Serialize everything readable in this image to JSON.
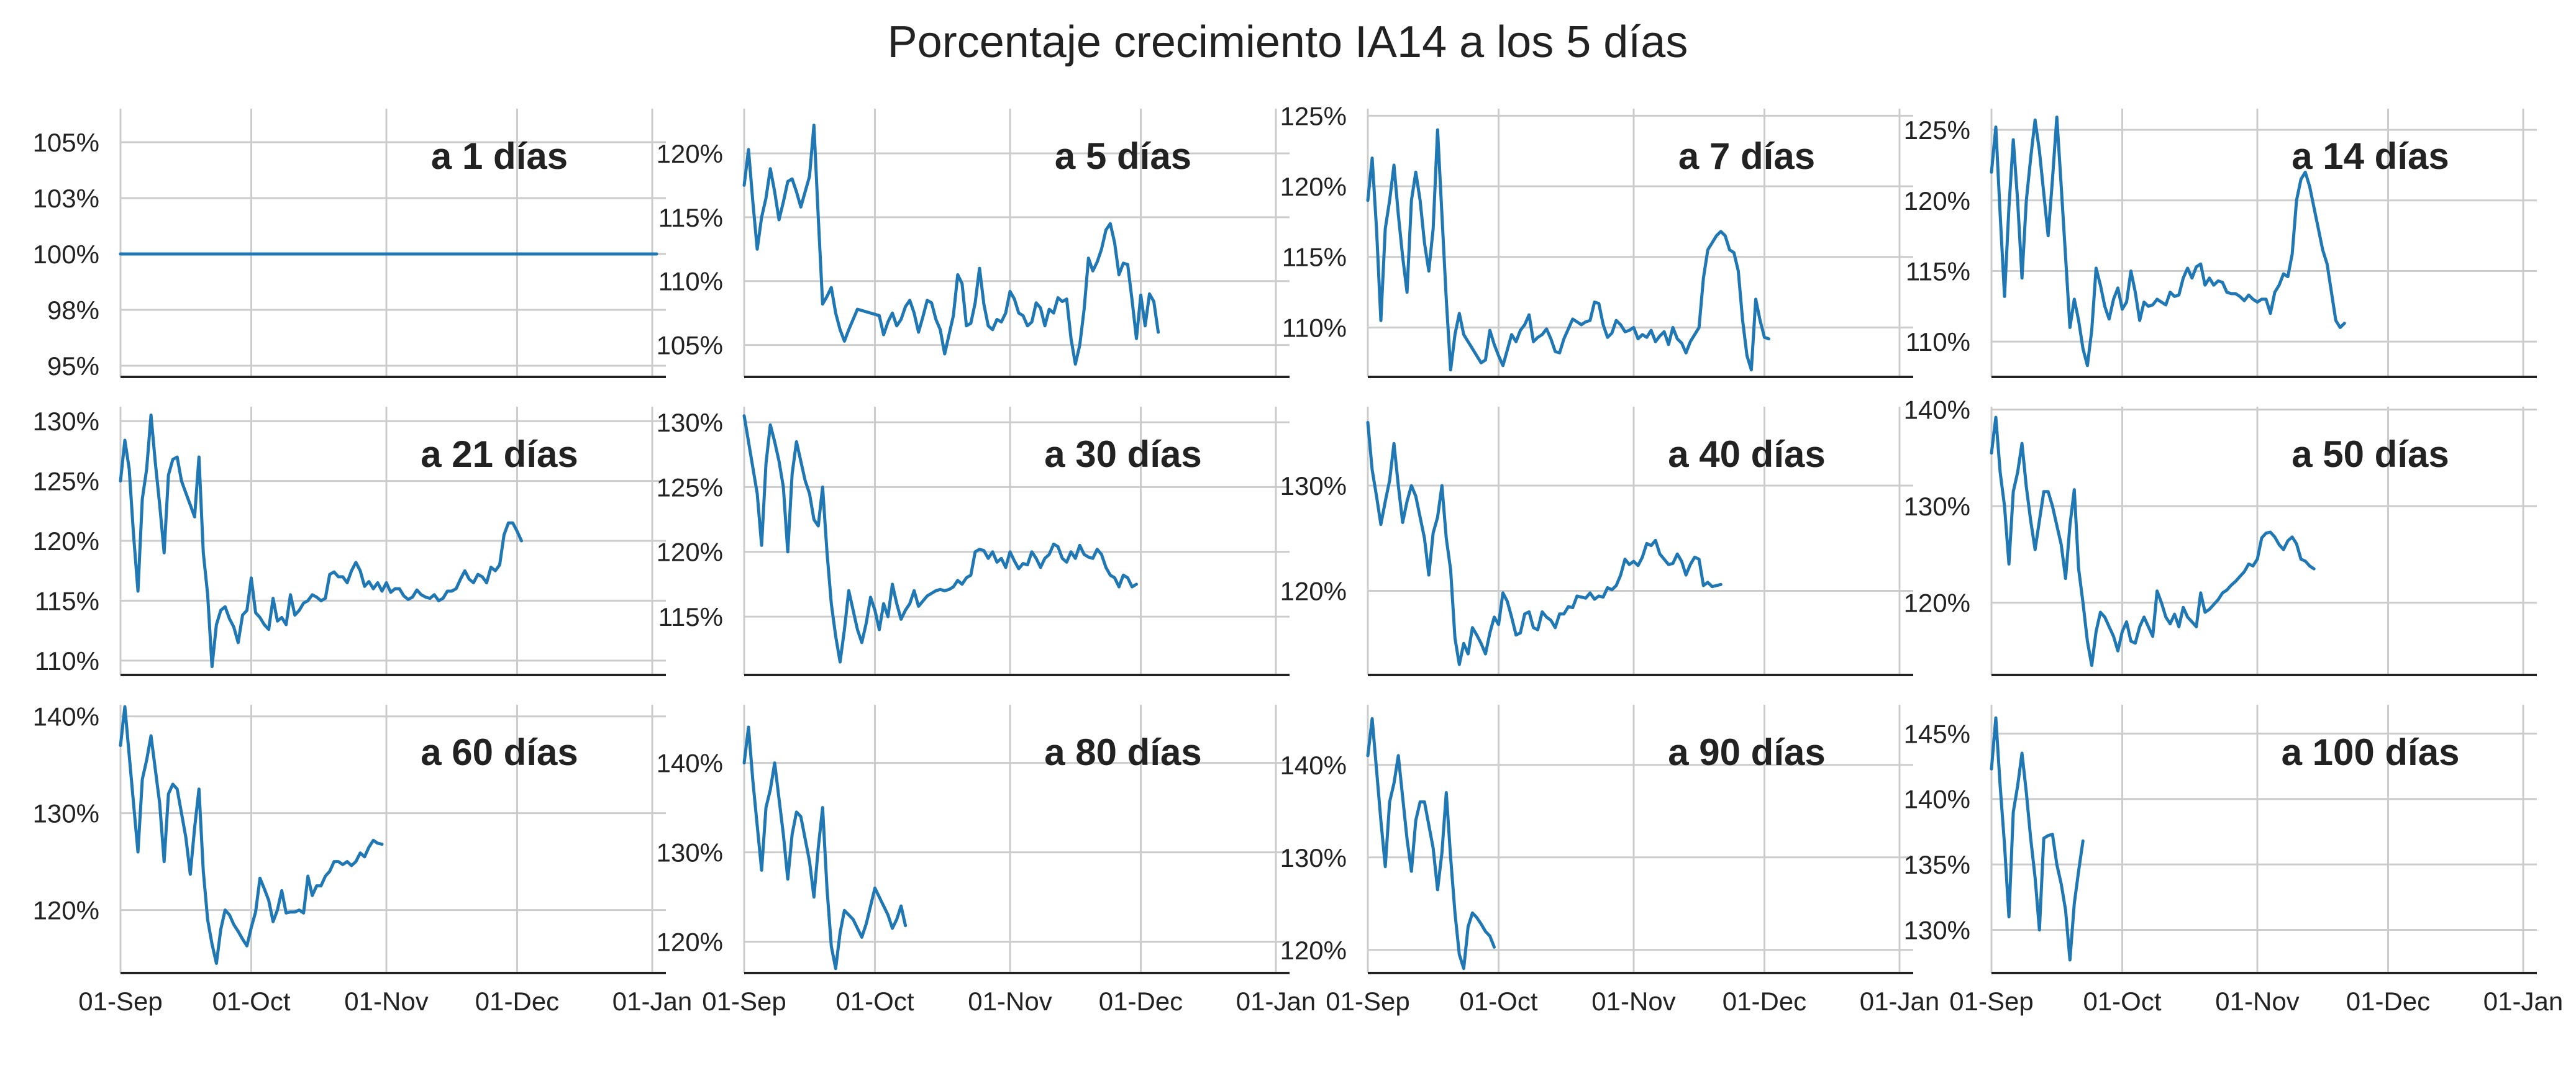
{
  "title": "Porcentaje crecimiento IA14 a los 5 días",
  "colors": {
    "line": "#1f77b4",
    "grid": "#cccccc",
    "axis": "#222222"
  },
  "x_ticks": [
    "01-Sep",
    "01-Oct",
    "01-Nov",
    "01-Dec",
    "01-Jan"
  ],
  "chart_data": [
    {
      "type": "line",
      "title": "a 1 días",
      "x_start": "2020-09-01",
      "ylim": [
        94.5,
        106.5
      ],
      "ytick_values": [
        95,
        97.5,
        100,
        102.5,
        105
      ],
      "ytick_labels": [
        "95%",
        "98%",
        "100%",
        "103%",
        "105%"
      ],
      "values": [
        100,
        100,
        100,
        100,
        100,
        100,
        100,
        100,
        100,
        100,
        100,
        100,
        100,
        100,
        100,
        100,
        100,
        100,
        100,
        100,
        100,
        100,
        100,
        100,
        100,
        100,
        100,
        100,
        100,
        100,
        100,
        100,
        100,
        100,
        100,
        100,
        100,
        100,
        100,
        100,
        100,
        100,
        100,
        100,
        100,
        100,
        100,
        100,
        100,
        100,
        100,
        100,
        100,
        100,
        100,
        100,
        100,
        100,
        100,
        100,
        100,
        100,
        100,
        100,
        100,
        100,
        100,
        100,
        100,
        100,
        100,
        100,
        100,
        100,
        100,
        100,
        100,
        100,
        100,
        100,
        100,
        100,
        100,
        100,
        100,
        100,
        100,
        100,
        100,
        100,
        100,
        100,
        100,
        100,
        100,
        100,
        100,
        100,
        100,
        100,
        100,
        100,
        100,
        100,
        100,
        100,
        100,
        100,
        100,
        100,
        100,
        100,
        100,
        100,
        100,
        100,
        100,
        100,
        100,
        100,
        100,
        100,
        100,
        100
      ]
    },
    {
      "type": "line",
      "title": "a 5 días",
      "x_start": "2020-09-01",
      "ylim": [
        102.5,
        123.5
      ],
      "ytick_values": [
        105,
        110,
        115,
        120
      ],
      "ytick_labels": [
        "105%",
        "110%",
        "115%",
        "120%"
      ],
      "values": [
        117.5,
        120.3,
        116.2,
        112.5,
        115.0,
        116.5,
        118.8,
        117.0,
        114.8,
        116.2,
        117.8,
        118.0,
        117.0,
        115.8,
        117.0,
        118.2,
        122.2,
        115.0,
        108.2,
        108.8,
        109.5,
        107.5,
        106.2,
        105.3,
        106.2,
        107.0,
        107.8,
        107.7,
        107.6,
        107.5,
        107.4,
        107.3,
        105.8,
        106.8,
        107.5,
        106.5,
        107.0,
        108.0,
        108.5,
        107.5,
        106.0,
        107.2,
        108.5,
        108.3,
        107.0,
        106.2,
        104.3,
        105.8,
        107.3,
        110.5,
        109.8,
        106.5,
        106.7,
        108.3,
        111.0,
        108.2,
        106.5,
        106.2,
        107.0,
        106.8,
        107.5,
        109.2,
        108.6,
        107.5,
        107.3,
        106.5,
        106.8,
        108.3,
        107.9,
        106.5,
        107.8,
        107.5,
        108.7,
        108.4,
        108.6,
        105.5,
        103.5,
        105.0,
        107.8,
        111.8,
        110.8,
        111.5,
        112.5,
        114.0,
        114.5,
        113.0,
        110.5,
        111.4,
        111.3,
        108.5,
        105.5,
        108.9,
        106.5,
        109.0,
        108.4,
        106.0
      ]
    },
    {
      "type": "line",
      "title": "a 7 días",
      "x_start": "2020-09-01",
      "ylim": [
        106.5,
        125.5
      ],
      "ytick_values": [
        110,
        115,
        120,
        125
      ],
      "ytick_labels": [
        "110%",
        "115%",
        "120%",
        "125%"
      ],
      "values": [
        119.0,
        122.0,
        117.0,
        110.5,
        117.0,
        119.0,
        121.5,
        118.0,
        115.0,
        112.5,
        119.0,
        121.0,
        119.0,
        116.0,
        114.0,
        117.0,
        124.0,
        118.0,
        112.0,
        107.0,
        109.5,
        111.0,
        109.5,
        109.0,
        108.5,
        108.0,
        107.5,
        107.7,
        109.8,
        108.8,
        108.0,
        107.3,
        108.4,
        109.5,
        109.0,
        109.8,
        110.2,
        110.9,
        109.0,
        109.3,
        109.5,
        109.9,
        109.2,
        108.3,
        108.2,
        109.2,
        109.9,
        110.6,
        110.4,
        110.2,
        110.4,
        110.5,
        111.8,
        111.7,
        110.2,
        109.3,
        109.6,
        110.5,
        110.2,
        109.7,
        109.8,
        110.0,
        109.2,
        109.5,
        109.3,
        109.8,
        109.0,
        109.4,
        109.7,
        108.8,
        110.0,
        109.2,
        108.9,
        108.2,
        109.0,
        109.5,
        110.0,
        113.5,
        115.5,
        116.0,
        116.5,
        116.8,
        116.5,
        115.5,
        115.3,
        114.0,
        110.5,
        108.0,
        107.0,
        112.0,
        110.5,
        109.3,
        109.2
      ]
    },
    {
      "type": "line",
      "title": "a 14 días",
      "x_start": "2020-09-01",
      "ylim": [
        107.5,
        126.5
      ],
      "ytick_values": [
        110,
        115,
        120,
        125
      ],
      "ytick_labels": [
        "110%",
        "115%",
        "120%",
        "125%"
      ],
      "values": [
        122.0,
        125.2,
        119.0,
        113.2,
        119.5,
        124.3,
        120.0,
        114.5,
        120.0,
        123.0,
        125.7,
        123.5,
        120.5,
        117.5,
        121.5,
        125.9,
        121.0,
        116.0,
        111.0,
        113.0,
        111.5,
        109.5,
        108.3,
        110.8,
        115.2,
        114.0,
        112.5,
        111.6,
        113.0,
        113.8,
        112.3,
        112.8,
        115.0,
        113.5,
        111.5,
        112.8,
        112.5,
        112.6,
        113.0,
        112.8,
        112.6,
        113.5,
        113.2,
        113.3,
        114.5,
        115.2,
        114.5,
        115.3,
        115.5,
        114.0,
        114.5,
        114.0,
        114.3,
        114.2,
        113.5,
        113.4,
        113.4,
        113.2,
        112.9,
        113.3,
        113.0,
        112.8,
        113.0,
        113.0,
        112.0,
        113.5,
        114.0,
        114.8,
        114.6,
        116.2,
        120.0,
        121.5,
        122.0,
        121.0,
        119.5,
        118.0,
        116.5,
        115.5,
        113.5,
        111.5,
        111.0,
        111.3
      ]
    },
    {
      "type": "line",
      "title": "a 21 días",
      "x_start": "2020-09-01",
      "ylim": [
        108.8,
        131.2
      ],
      "ytick_values": [
        110,
        115,
        120,
        125,
        130
      ],
      "ytick_labels": [
        "110%",
        "115%",
        "120%",
        "125%",
        "130%"
      ],
      "values": [
        125.0,
        128.4,
        126.0,
        120.5,
        115.8,
        123.5,
        126.0,
        130.5,
        126.5,
        123.0,
        119.0,
        125.5,
        126.8,
        127.0,
        125.0,
        124.0,
        123.0,
        122.0,
        127.0,
        119.0,
        115.5,
        109.5,
        113.0,
        114.2,
        114.5,
        113.5,
        112.8,
        111.5,
        113.8,
        114.2,
        116.9,
        114.0,
        113.6,
        113.0,
        112.6,
        115.2,
        113.3,
        113.6,
        113.0,
        115.5,
        113.8,
        114.2,
        114.8,
        115.0,
        115.5,
        115.3,
        115.0,
        115.2,
        117.2,
        117.4,
        117.0,
        117.0,
        116.5,
        117.5,
        118.2,
        117.5,
        116.2,
        116.6,
        116.0,
        116.5,
        115.8,
        116.5,
        115.7,
        116.0,
        116.0,
        115.4,
        115.1,
        115.3,
        115.9,
        115.5,
        115.3,
        115.2,
        115.5,
        115.0,
        115.2,
        115.8,
        115.8,
        116.0,
        116.8,
        117.5,
        116.8,
        116.5,
        117.2,
        117.0,
        116.5,
        117.8,
        117.5,
        118.0,
        120.5,
        121.5,
        121.5,
        120.8,
        120.0
      ]
    },
    {
      "type": "line",
      "title": "a 30 días",
      "x_start": "2020-09-01",
      "ylim": [
        110.5,
        131.2
      ],
      "ytick_values": [
        115,
        120,
        125,
        130
      ],
      "ytick_labels": [
        "115%",
        "120%",
        "125%",
        "130%"
      ],
      "values": [
        130.5,
        128.5,
        126.5,
        124.5,
        120.5,
        126.8,
        129.8,
        128.5,
        127.0,
        125.0,
        120.0,
        126.0,
        128.5,
        127.0,
        125.5,
        124.5,
        122.5,
        122.0,
        125.0,
        120.0,
        116.0,
        113.5,
        111.5,
        114.0,
        117.0,
        115.5,
        114.0,
        113.0,
        114.5,
        116.5,
        115.5,
        114.0,
        116.0,
        115.0,
        117.5,
        116.0,
        114.8,
        115.5,
        116.0,
        117.0,
        115.8,
        116.2,
        116.6,
        116.8,
        117.0,
        117.1,
        117.0,
        117.1,
        117.3,
        117.8,
        117.5,
        118.0,
        118.2,
        120.0,
        120.2,
        120.1,
        119.5,
        120.0,
        119.2,
        119.5,
        118.8,
        120.0,
        119.3,
        118.7,
        119.1,
        119.0,
        120.0,
        119.5,
        118.8,
        119.5,
        119.8,
        120.6,
        120.4,
        119.5,
        119.2,
        120.0,
        119.5,
        120.5,
        119.8,
        119.6,
        119.5,
        120.2,
        119.8,
        118.8,
        118.2,
        118.0,
        117.3,
        118.2,
        118.0,
        117.3,
        117.5
      ]
    },
    {
      "type": "line",
      "title": "a 40 días",
      "x_start": "2020-09-01",
      "ylim": [
        112.0,
        137.5
      ],
      "ytick_values": [
        120,
        130
      ],
      "ytick_labels": [
        "120%",
        "130%"
      ],
      "values": [
        136.0,
        131.5,
        129.0,
        126.3,
        128.5,
        130.5,
        134.0,
        130.0,
        126.5,
        128.5,
        130.0,
        129.0,
        127.0,
        125.0,
        121.5,
        125.5,
        127.0,
        130.0,
        125.0,
        122.0,
        115.5,
        113.0,
        115.0,
        114.0,
        116.5,
        115.8,
        115.0,
        114.0,
        116.0,
        117.5,
        116.8,
        119.8,
        119.0,
        117.5,
        115.8,
        116.0,
        117.8,
        118.0,
        116.5,
        116.3,
        118.0,
        117.5,
        117.2,
        116.5,
        117.8,
        117.8,
        118.5,
        118.4,
        119.5,
        119.4,
        119.3,
        119.8,
        119.2,
        119.5,
        119.4,
        120.3,
        120.1,
        120.5,
        121.5,
        123.0,
        122.5,
        122.8,
        122.4,
        123.2,
        124.5,
        124.3,
        124.8,
        123.5,
        123.0,
        122.5,
        122.6,
        123.5,
        122.8,
        121.5,
        122.5,
        123.2,
        123.0,
        120.5,
        120.8,
        120.4,
        120.5,
        120.6
      ]
    },
    {
      "type": "line",
      "title": "a 50 días",
      "x_start": "2020-09-01",
      "ylim": [
        112.5,
        140.3
      ],
      "ytick_values": [
        120,
        130,
        140
      ],
      "ytick_labels": [
        "120%",
        "130%",
        "140%"
      ],
      "values": [
        135.5,
        139.2,
        133.5,
        130.0,
        124.0,
        131.5,
        133.5,
        136.5,
        132.0,
        128.5,
        125.5,
        128.5,
        131.5,
        131.5,
        130.0,
        128.0,
        126.0,
        122.5,
        128.0,
        131.7,
        123.5,
        120.0,
        116.0,
        113.5,
        117.0,
        119.0,
        118.5,
        117.5,
        116.5,
        115.0,
        117.0,
        118.0,
        116.0,
        115.8,
        117.5,
        118.5,
        117.5,
        116.5,
        121.2,
        120.0,
        118.5,
        117.8,
        118.8,
        117.5,
        119.5,
        118.5,
        118.0,
        117.5,
        121.0,
        119.0,
        119.3,
        119.8,
        120.3,
        121.0,
        121.3,
        121.8,
        122.2,
        122.7,
        123.2,
        124.0,
        123.8,
        124.5,
        126.7,
        127.2,
        127.3,
        126.8,
        126.0,
        125.5,
        126.4,
        126.8,
        126.1,
        124.5,
        124.3,
        123.8,
        123.5
      ]
    },
    {
      "type": "line",
      "title": "a 60 días",
      "x_start": "2020-09-01",
      "ylim": [
        113.5,
        141.2
      ],
      "ytick_values": [
        120,
        130,
        140
      ],
      "ytick_labels": [
        "120%",
        "130%",
        "140%"
      ],
      "values": [
        137.0,
        141.0,
        136.0,
        131.0,
        126.0,
        133.5,
        135.5,
        138.0,
        134.5,
        131.0,
        125.0,
        132.0,
        133.0,
        132.5,
        130.0,
        127.5,
        123.7,
        128.5,
        132.5,
        124.0,
        119.0,
        116.5,
        114.5,
        118.0,
        120.0,
        119.5,
        118.5,
        117.8,
        117.0,
        116.3,
        118.2,
        119.8,
        123.3,
        122.2,
        121.0,
        118.8,
        120.0,
        122.0,
        119.7,
        119.8,
        119.8,
        120.0,
        119.7,
        123.5,
        121.5,
        122.5,
        122.5,
        123.5,
        124.0,
        125.0,
        125.0,
        124.7,
        125.0,
        124.6,
        125.0,
        125.9,
        125.5,
        126.5,
        127.2,
        126.9,
        126.8
      ]
    },
    {
      "type": "line",
      "title": "a 80 días",
      "x_start": "2020-09-01",
      "ylim": [
        116.5,
        146.5
      ],
      "ytick_values": [
        120,
        130,
        140
      ],
      "ytick_labels": [
        "120%",
        "130%",
        "140%"
      ],
      "values": [
        140.0,
        144.0,
        138.0,
        133.0,
        128.0,
        135.0,
        137.0,
        140.0,
        136.0,
        132.0,
        127.0,
        132.0,
        134.5,
        134.0,
        131.5,
        129.0,
        125.0,
        130.5,
        135.0,
        126.0,
        119.5,
        117.0,
        121.0,
        123.5,
        123.0,
        122.5,
        121.5,
        120.5,
        122.0,
        124.0,
        126.0,
        125.0,
        124.0,
        123.0,
        121.5,
        122.5,
        124.0,
        121.8
      ]
    },
    {
      "type": "line",
      "title": "a 90 días",
      "x_start": "2020-09-01",
      "ylim": [
        117.5,
        146.5
      ],
      "ytick_values": [
        120,
        130,
        140
      ],
      "ytick_labels": [
        "120%",
        "130%",
        "140%"
      ],
      "values": [
        141.0,
        145.0,
        139.5,
        134.0,
        129.0,
        136.0,
        138.0,
        141.0,
        136.5,
        132.0,
        128.5,
        134.0,
        136.0,
        136.0,
        133.5,
        131.0,
        126.5,
        130.5,
        137.0,
        130.0,
        124.0,
        119.5,
        118.0,
        122.5,
        124.0,
        123.5,
        122.8,
        122.0,
        121.5,
        120.3
      ]
    },
    {
      "type": "line",
      "title": "a 100 días",
      "x_start": "2020-09-01",
      "ylim": [
        126.7,
        147.2
      ],
      "ytick_values": [
        130,
        135,
        140,
        145
      ],
      "ytick_labels": [
        "130%",
        "135%",
        "140%",
        "145%"
      ],
      "values": [
        142.3,
        146.2,
        141.0,
        136.5,
        131.0,
        139.0,
        141.0,
        143.5,
        140.5,
        137.0,
        134.0,
        130.0,
        137.0,
        137.2,
        137.3,
        135.0,
        133.5,
        131.5,
        127.7,
        132.0,
        134.5,
        136.8
      ]
    }
  ]
}
